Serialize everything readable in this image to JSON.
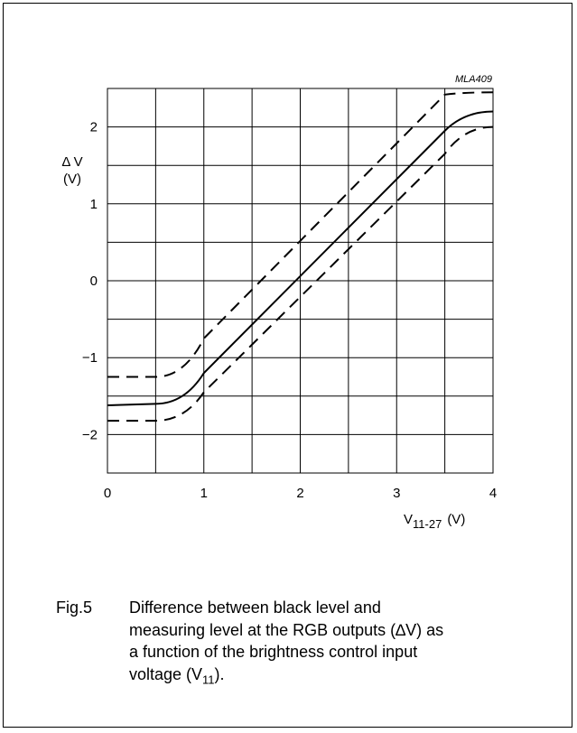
{
  "chart_data": {
    "type": "line",
    "code": "MLA409",
    "ylabel_line1": "Δ V",
    "ylabel_line2": "(V)",
    "xlabel_main": "V",
    "xlabel_sub": "11-27",
    "xlabel_unit": "(V)",
    "xlim": [
      0,
      4
    ],
    "ylim": [
      -2.5,
      2.5
    ],
    "grid": true,
    "x_ticks": [
      0,
      1,
      2,
      3,
      4
    ],
    "y_ticks": [
      -2,
      -1,
      0,
      1,
      2
    ],
    "x_tick_labels": [
      "0",
      "1",
      "2",
      "3",
      "4"
    ],
    "y_tick_labels": [
      "−2",
      "−1",
      "0",
      "1",
      "2"
    ],
    "series": [
      {
        "style": "dashed",
        "x": [
          0,
          0.5,
          1.0,
          3.5,
          4.0
        ],
        "y": [
          -1.25,
          -1.25,
          -0.75,
          2.42,
          2.45
        ]
      },
      {
        "style": "solid",
        "x": [
          0,
          0.5,
          1.0,
          3.5,
          4.0
        ],
        "y": [
          -1.62,
          -1.6,
          -1.2,
          1.95,
          2.2
        ]
      },
      {
        "style": "dashed",
        "x": [
          0,
          0.5,
          1.0,
          3.5,
          4.0
        ],
        "y": [
          -1.82,
          -1.82,
          -1.45,
          1.65,
          2.0
        ]
      }
    ]
  },
  "caption": {
    "fig_number": "Fig.5",
    "line1": "Difference between black level and",
    "line2": "measuring level at the RGB outputs (∆V) as",
    "line3": "a function of the brightness control input",
    "line4_pre": "voltage (V",
    "line4_sub": "11",
    "line4_post": ")."
  }
}
